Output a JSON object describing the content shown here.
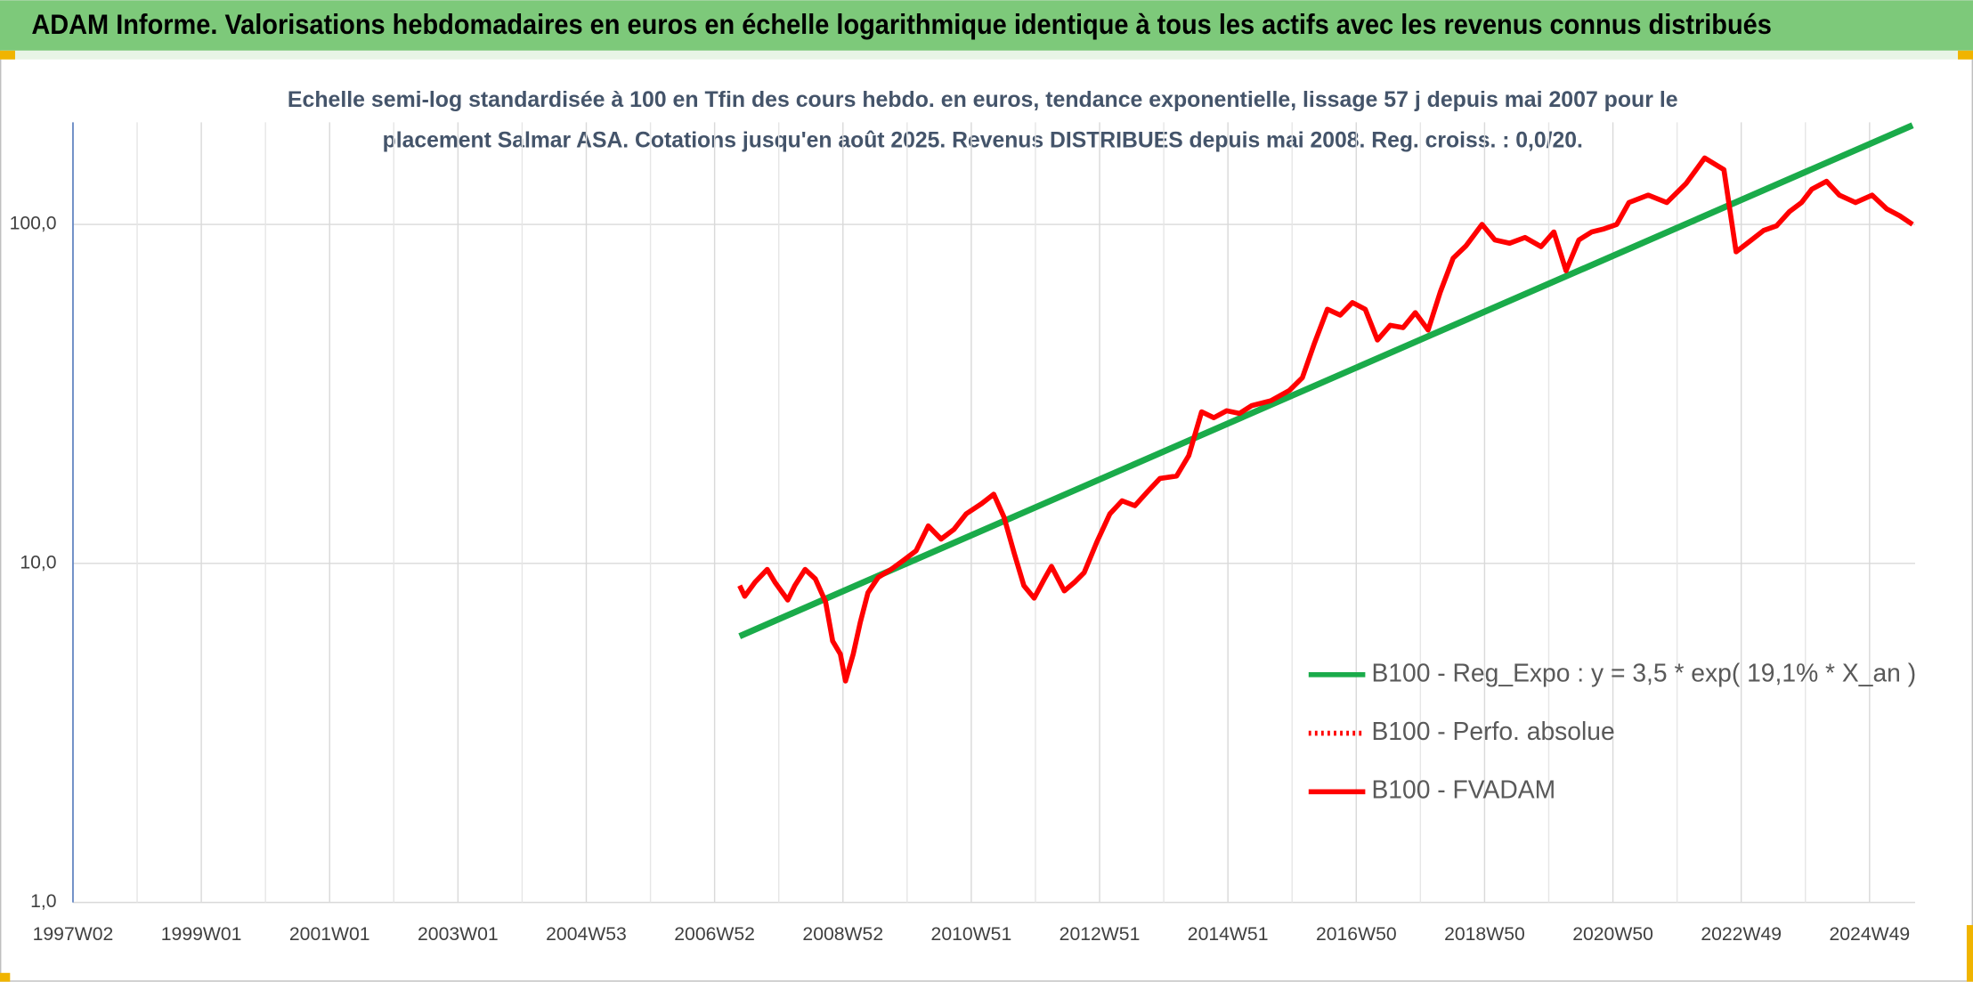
{
  "header": {
    "title": "ADAM Informe. Valorisations hebdomadaires en euros en échelle logarithmique identique à tous les actifs avec les revenus connus distribués"
  },
  "chart_data": {
    "type": "line",
    "subtitle": [
      "Echelle semi-log standardisée à 100 en Tfin des cours hebdo. en euros, tendance exponentielle, lissage 57 j depuis mai 2007 pour le",
      "placement Salmar ASA. Cotations jusqu'en août 2025. Revenus DISTRIBUES depuis mai 2008. Reg. croiss. : 0,0/20."
    ],
    "log_y": true,
    "grid": true,
    "legend": "right",
    "xlim": [
      1997,
      2025.71
    ],
    "xticks": [
      {
        "value": 1997,
        "label": "1997W02"
      },
      {
        "value": 1999,
        "label": "1999W01"
      },
      {
        "value": 2001,
        "label": "2001W01"
      },
      {
        "value": 2003,
        "label": "2003W01"
      },
      {
        "value": 2005,
        "label": "2004W53"
      },
      {
        "value": 2007,
        "label": "2006W52"
      },
      {
        "value": 2009,
        "label": "2008W52"
      },
      {
        "value": 2011,
        "label": "2010W51"
      },
      {
        "value": 2013,
        "label": "2012W51"
      },
      {
        "value": 2015,
        "label": "2014W51"
      },
      {
        "value": 2017,
        "label": "2016W50"
      },
      {
        "value": 2019,
        "label": "2018W50"
      },
      {
        "value": 2021,
        "label": "2020W50"
      },
      {
        "value": 2023,
        "label": "2022W49"
      },
      {
        "value": 2025,
        "label": "2024W49"
      }
    ],
    "ylim": [
      1,
      200
    ],
    "yticks": [
      {
        "value": 1,
        "label": "1,0"
      },
      {
        "value": 10,
        "label": "10,0"
      },
      {
        "value": 100,
        "label": "100,0"
      }
    ],
    "series": [
      {
        "name": "B100 - Reg_Expo : y = 3,5 * exp( 19,1% *  X_an )",
        "color": "#1aab4a",
        "style": "solid",
        "x": [
          2007.39,
          2025.67
        ],
        "values": [
          6.1,
          196
        ]
      },
      {
        "name": "B100 - Perfo. absolue",
        "color": "#ff0000",
        "style": "dotted",
        "x": [],
        "values": []
      },
      {
        "name": "B100 - FVADAM",
        "color": "#ff0000",
        "style": "solid",
        "x": [
          2007.39,
          2007.47,
          2007.63,
          2007.82,
          2007.94,
          2008.14,
          2008.25,
          2008.41,
          2008.57,
          2008.73,
          2008.84,
          2008.96,
          2009.04,
          2009.16,
          2009.27,
          2009.39,
          2009.55,
          2009.75,
          2009.94,
          2010.14,
          2010.33,
          2010.53,
          2010.73,
          2010.92,
          2011.16,
          2011.35,
          2011.51,
          2011.67,
          2011.82,
          2011.98,
          2012.14,
          2012.25,
          2012.45,
          2012.61,
          2012.76,
          2012.96,
          2013.16,
          2013.35,
          2013.55,
          2013.75,
          2013.94,
          2014.2,
          2014.39,
          2014.59,
          2014.78,
          2014.98,
          2015.18,
          2015.37,
          2015.67,
          2015.96,
          2016.16,
          2016.35,
          2016.55,
          2016.75,
          2016.94,
          2017.14,
          2017.33,
          2017.53,
          2017.73,
          2017.92,
          2018.12,
          2018.31,
          2018.51,
          2018.71,
          2018.96,
          2019.16,
          2019.39,
          2019.63,
          2019.88,
          2020.08,
          2020.27,
          2020.47,
          2020.67,
          2020.86,
          2021.06,
          2021.25,
          2021.55,
          2021.84,
          2022.14,
          2022.43,
          2022.73,
          2022.92,
          2023.16,
          2023.35,
          2023.55,
          2023.75,
          2023.94,
          2024.1,
          2024.33,
          2024.53,
          2024.78,
          2025.04,
          2025.27,
          2025.47,
          2025.67
        ],
        "values": [
          8.6,
          8.0,
          8.8,
          9.6,
          8.8,
          7.8,
          8.6,
          9.6,
          9.0,
          7.7,
          5.9,
          5.4,
          4.5,
          5.4,
          6.7,
          8.2,
          9.1,
          9.6,
          10.2,
          10.9,
          12.9,
          11.8,
          12.6,
          14.0,
          15.0,
          16.0,
          13.7,
          10.7,
          8.6,
          7.9,
          9.0,
          9.8,
          8.3,
          8.8,
          9.4,
          11.6,
          14.0,
          15.3,
          14.8,
          16.3,
          17.8,
          18.1,
          20.8,
          28.0,
          26.9,
          28.2,
          27.7,
          29.2,
          30.2,
          32.4,
          35.3,
          44.7,
          56.2,
          54.0,
          58.8,
          56.2,
          45.6,
          50.4,
          49.6,
          54.9,
          48.8,
          63.2,
          79.5,
          86.4,
          100,
          90,
          88,
          91.5,
          86,
          95,
          73,
          90,
          95,
          97,
          100,
          116,
          122,
          116,
          132,
          157,
          145,
          83,
          90,
          96,
          99,
          109,
          116,
          127,
          134,
          122,
          116,
          122,
          111,
          106,
          100
        ]
      }
    ]
  }
}
